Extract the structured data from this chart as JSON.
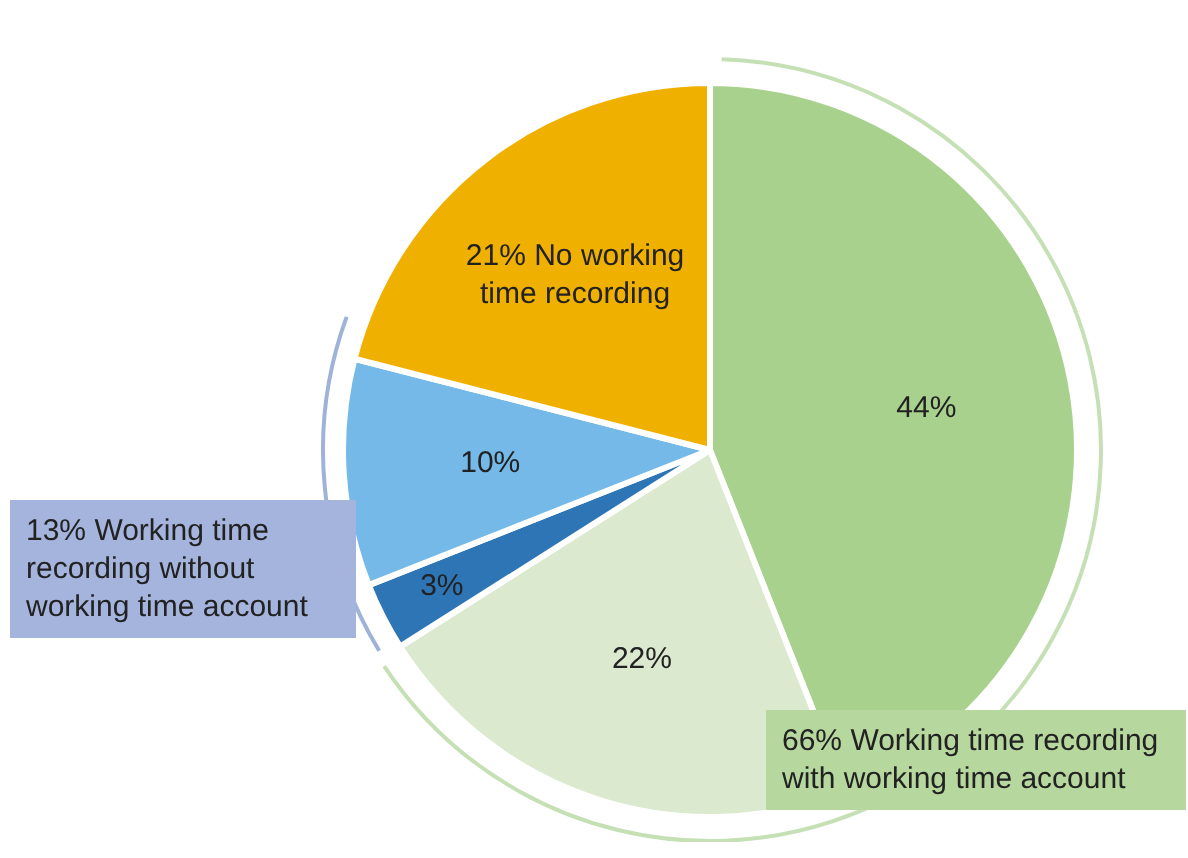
{
  "chart_data": {
    "type": "pie",
    "categories": [
      null,
      null,
      null,
      null,
      null
    ],
    "values": [
      44,
      22,
      3,
      10,
      21
    ],
    "colors": [
      "#a9d18e",
      "#dbe9cf",
      "#2e75b6",
      "#74b9e7",
      "#f0b000"
    ],
    "value_labels": [
      "44%",
      "22%",
      "3%",
      "10%",
      "21% No working time recording"
    ],
    "annotations": [
      "13% Working time recording without working time account",
      "66% Working time recording with working time account"
    ],
    "legend": false
  }
}
